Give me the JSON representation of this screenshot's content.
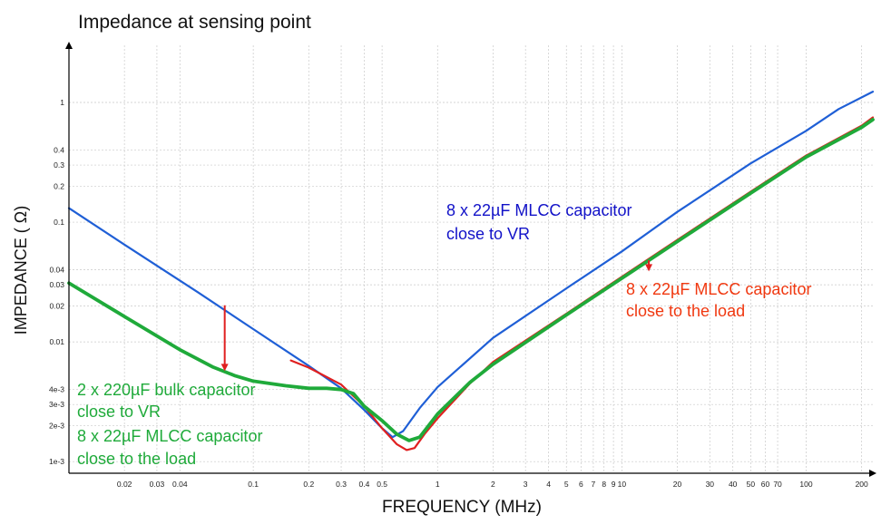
{
  "chart_data": {
    "type": "line",
    "title": "Impedance at sensing point",
    "xlabel": "FREQUENCY (MHz)",
    "ylabel": "IMPEDANCE ( Ω)",
    "xscale": "log",
    "yscale": "log",
    "xlim": [
      0.01,
      230
    ],
    "ylim": [
      0.0008,
      3
    ],
    "grid": true,
    "x_ticks": [
      {
        "value": 0.02,
        "label": "0.02"
      },
      {
        "value": 0.03,
        "label": "0.03"
      },
      {
        "value": 0.04,
        "label": "0.04"
      },
      {
        "value": 0.1,
        "label": "0.1"
      },
      {
        "value": 0.2,
        "label": "0.2"
      },
      {
        "value": 0.3,
        "label": "0.3"
      },
      {
        "value": 0.4,
        "label": "0.4"
      },
      {
        "value": 0.5,
        "label": "0.5"
      },
      {
        "value": 1,
        "label": "1"
      },
      {
        "value": 2,
        "label": "2"
      },
      {
        "value": 3,
        "label": "3"
      },
      {
        "value": 4,
        "label": "4"
      },
      {
        "value": 5,
        "label": "5"
      },
      {
        "value": 6,
        "label": "6"
      },
      {
        "value": 7,
        "label": "7"
      },
      {
        "value": 8,
        "label": "8"
      },
      {
        "value": 9,
        "label": "9"
      },
      {
        "value": 10,
        "label": "10"
      },
      {
        "value": 20,
        "label": "20"
      },
      {
        "value": 30,
        "label": "30"
      },
      {
        "value": 40,
        "label": "40"
      },
      {
        "value": 50,
        "label": "50"
      },
      {
        "value": 60,
        "label": "60"
      },
      {
        "value": 70,
        "label": "70"
      },
      {
        "value": 100,
        "label": "100"
      },
      {
        "value": 200,
        "label": "200"
      }
    ],
    "y_ticks": [
      {
        "value": 1,
        "label": "1"
      },
      {
        "value": 0.4,
        "label": "0.4"
      },
      {
        "value": 0.3,
        "label": "0.3"
      },
      {
        "value": 0.2,
        "label": "0.2"
      },
      {
        "value": 0.1,
        "label": "0.1"
      },
      {
        "value": 0.04,
        "label": "0.04"
      },
      {
        "value": 0.03,
        "label": "0.03"
      },
      {
        "value": 0.02,
        "label": "0.02"
      },
      {
        "value": 0.01,
        "label": "0.01"
      },
      {
        "value": 0.004,
        "label": "4e-3"
      },
      {
        "value": 0.003,
        "label": "3e-3"
      },
      {
        "value": 0.002,
        "label": "2e-3"
      },
      {
        "value": 0.001,
        "label": "1e-3"
      }
    ],
    "series": [
      {
        "key": "blue",
        "color": "#1f5fd6",
        "width": 2.2,
        "points": [
          [
            0.01,
            0.131
          ],
          [
            0.02,
            0.065
          ],
          [
            0.05,
            0.026
          ],
          [
            0.1,
            0.0128
          ],
          [
            0.2,
            0.0063
          ],
          [
            0.3,
            0.0041
          ],
          [
            0.4,
            0.0027
          ],
          [
            0.5,
            0.0019
          ],
          [
            0.57,
            0.0016
          ],
          [
            0.65,
            0.0018
          ],
          [
            0.8,
            0.0028
          ],
          [
            1,
            0.0042
          ],
          [
            2,
            0.0108
          ],
          [
            5,
            0.028
          ],
          [
            10,
            0.057
          ],
          [
            20,
            0.122
          ],
          [
            50,
            0.31
          ],
          [
            100,
            0.58
          ],
          [
            150,
            0.88
          ],
          [
            230,
            1.23
          ]
        ]
      },
      {
        "key": "red",
        "color": "#e02020",
        "width": 2.2,
        "points": [
          [
            0.16,
            0.007
          ],
          [
            0.2,
            0.0061
          ],
          [
            0.3,
            0.0044
          ],
          [
            0.4,
            0.0029
          ],
          [
            0.5,
            0.0019
          ],
          [
            0.6,
            0.0014
          ],
          [
            0.68,
            0.00125
          ],
          [
            0.75,
            0.0013
          ],
          [
            0.85,
            0.0017
          ],
          [
            1,
            0.0023
          ],
          [
            1.5,
            0.0045
          ],
          [
            2,
            0.0068
          ],
          [
            5,
            0.0172
          ],
          [
            10,
            0.035
          ],
          [
            20,
            0.071
          ],
          [
            50,
            0.18
          ],
          [
            100,
            0.36
          ],
          [
            200,
            0.64
          ],
          [
            230,
            0.75
          ]
        ]
      },
      {
        "key": "green",
        "color": "#1faa3a",
        "width": 3.8,
        "points": [
          [
            0.01,
            0.031
          ],
          [
            0.02,
            0.0163
          ],
          [
            0.04,
            0.0086
          ],
          [
            0.06,
            0.0062
          ],
          [
            0.08,
            0.0052
          ],
          [
            0.1,
            0.0047
          ],
          [
            0.15,
            0.0043
          ],
          [
            0.2,
            0.0041
          ],
          [
            0.25,
            0.0041
          ],
          [
            0.3,
            0.004
          ],
          [
            0.35,
            0.0037
          ],
          [
            0.4,
            0.0029
          ],
          [
            0.5,
            0.0022
          ],
          [
            0.6,
            0.0017
          ],
          [
            0.7,
            0.0015
          ],
          [
            0.8,
            0.0016
          ],
          [
            1,
            0.0025
          ],
          [
            1.5,
            0.0046
          ],
          [
            2,
            0.0065
          ],
          [
            5,
            0.0168
          ],
          [
            10,
            0.034
          ],
          [
            20,
            0.069
          ],
          [
            50,
            0.175
          ],
          [
            100,
            0.35
          ],
          [
            200,
            0.62
          ],
          [
            230,
            0.72
          ]
        ]
      }
    ],
    "arrows": [
      {
        "x": 0.07,
        "y_from": 0.0202,
        "y_to": 0.0058,
        "color": "#e02020"
      },
      {
        "x": 14,
        "y_from": 0.048,
        "y_to": 0.0395,
        "color": "#e02020"
      }
    ],
    "annotations": [
      {
        "key": "vr",
        "color": "#1212c8",
        "lines": [
          "8 x 22µF MLCC capacitor",
          "close to VR"
        ]
      },
      {
        "key": "load",
        "color": "#f03810",
        "lines": [
          "8 x 22µF MLCC capacitor",
          "close to the load"
        ]
      },
      {
        "key": "bulk",
        "color": "#1faa3a",
        "lines": [
          "2 x 220µF bulk capacitor",
          "close to VR",
          "8 x 22µF MLCC capacitor",
          "close to the load"
        ]
      }
    ]
  }
}
